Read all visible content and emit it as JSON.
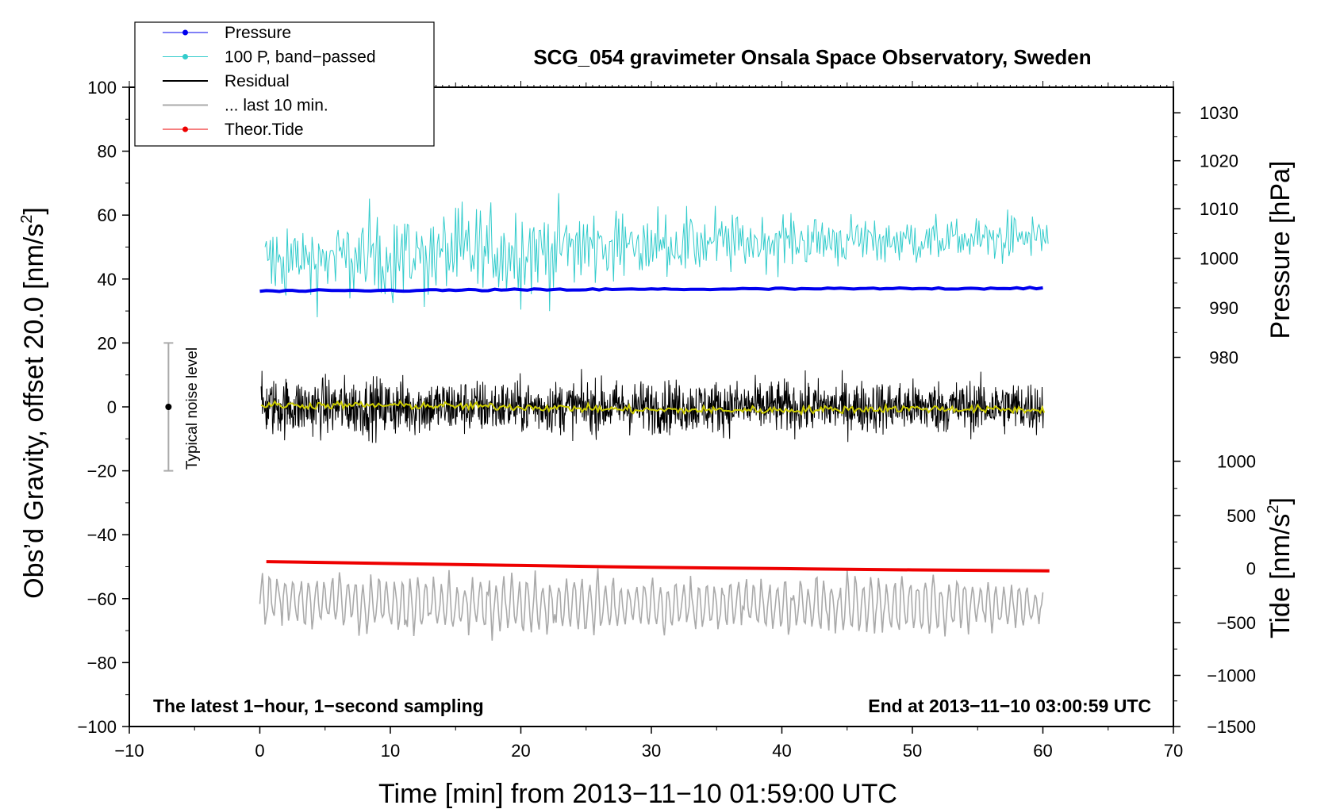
{
  "chart_data": {
    "type": "line",
    "title": "SCG_054 gravimeter Onsala Space Observatory, Sweden",
    "xlabel": "Time [min] from 2013−11−10 01:59:00 UTC",
    "ylabel": "Obs’d Gravity, offset 20.0 [nm/s",
    "ylabel_sup": "2",
    "ylabel_end": "]",
    "right_pressure_label": "Pressure [hPa]",
    "right_tide_label": "Tide [nm/s",
    "right_tide_sup": "2",
    "right_tide_end": "]",
    "note_left": "The latest 1−hour, 1−second sampling",
    "note_right": "End at 2013−11−10 03:00:59 UTC",
    "noise_label": "Typical noise level",
    "noise_bar": {
      "x": -7,
      "center": 0,
      "low": -20,
      "high": 20
    },
    "xlim": [
      -10,
      70
    ],
    "ylim": [
      -100,
      100
    ],
    "x_ticks": [
      "−10",
      "0",
      "10",
      "20",
      "30",
      "40",
      "50",
      "60",
      "70"
    ],
    "y_ticks": [
      "100",
      "80",
      "60",
      "40",
      "20",
      "0",
      "−20",
      "−40",
      "−60",
      "−80",
      "−100"
    ],
    "pressure_ticks": [
      "1030",
      "1020",
      "1010",
      "1000",
      "990",
      "980"
    ],
    "pressure_tick_y": [
      92,
      77,
      62,
      46.5,
      31,
      15.5
    ],
    "tide_ticks": [
      "1000",
      "500",
      "0",
      "−500",
      "−1000",
      "−1500"
    ],
    "tide_tick_y": [
      -17,
      -34,
      -50.5,
      -67.5,
      -84,
      -100
    ],
    "legend_position": "top-left",
    "legend": [
      {
        "name": "Pressure",
        "color": "#0000ee",
        "style": "line-dot"
      },
      {
        "name": "100 P, band−passed",
        "color": "#33cccc",
        "style": "line-dot"
      },
      {
        "name": "Residual",
        "color": "#000000",
        "style": "line"
      },
      {
        "name": "... last 10 min.",
        "color": "#aaaaaa",
        "style": "line"
      },
      {
        "name": "Theor.Tide",
        "color": "#ee0000",
        "style": "line-dot"
      }
    ],
    "series": [
      {
        "name": "Pressure",
        "color": "#0000ee",
        "x": [
          0,
          10,
          20,
          30,
          40,
          50,
          60
        ],
        "values": [
          36.2,
          36.4,
          36.6,
          36.8,
          36.9,
          37.0,
          37.2
        ]
      },
      {
        "name": "100 P, band−passed",
        "color": "#33cccc",
        "x": [
          0,
          10,
          20,
          30,
          40,
          50,
          60
        ],
        "values": [
          45,
          47,
          49,
          51,
          52,
          52,
          53
        ],
        "amplitude": [
          8,
          10,
          10,
          7,
          6,
          5,
          5
        ]
      },
      {
        "name": "Residual",
        "color": "#000000",
        "x": [
          0,
          10,
          20,
          30,
          40,
          50,
          60
        ],
        "values": [
          0,
          0,
          0,
          0,
          0,
          0,
          0
        ],
        "amplitude": [
          10,
          10,
          9,
          9,
          9,
          9,
          9
        ]
      },
      {
        "name": "Residual smoothed",
        "color": "#cccc00",
        "x": [
          0,
          10,
          20,
          30,
          40,
          50,
          60
        ],
        "values": [
          0.5,
          0.5,
          0,
          -1,
          -1,
          -0.5,
          -1
        ]
      },
      {
        "name": "... last 10 min.",
        "color": "#aaaaaa",
        "x": [
          0,
          10,
          20,
          30,
          40,
          50,
          60
        ],
        "values": [
          -60,
          -62,
          -62,
          -62,
          -62,
          -62,
          -62
        ],
        "amplitude": [
          8,
          8,
          9,
          8,
          8,
          9,
          6
        ]
      },
      {
        "name": "Theor.Tide",
        "color": "#ee0000",
        "x": [
          0.5,
          10,
          20,
          30,
          40,
          50,
          60.5
        ],
        "values": [
          -48.4,
          -49.0,
          -49.6,
          -50.2,
          -50.6,
          -51.0,
          -51.3
        ]
      }
    ]
  }
}
